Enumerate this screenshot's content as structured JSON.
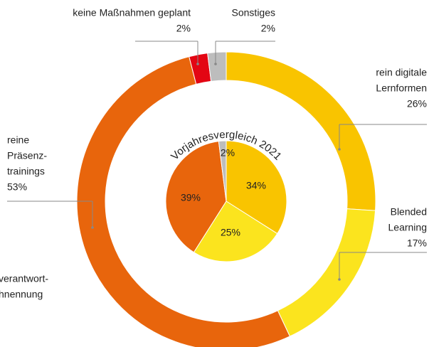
{
  "chart_data": {
    "type": "donut",
    "title": "Vorjahresvergleich 2021",
    "note": [
      "verantwort-",
      "hnennung"
    ],
    "outer": {
      "categories": [
        [
          "rein digitale",
          "Lernformen"
        ],
        [
          "Blended",
          "Learning"
        ],
        [
          "reine",
          "Präsenz-",
          "trainings"
        ],
        [
          "keine Maßnahmen geplant"
        ],
        [
          "Sonstiges"
        ]
      ],
      "values": [
        26,
        17,
        53,
        2,
        2
      ],
      "value_labels": [
        "26%",
        "17%",
        "53%",
        "2%",
        "2%"
      ],
      "colors": [
        "#f9c400",
        "#fbe41e",
        "#e8650c",
        "#e30613",
        "#bdbdbd"
      ]
    },
    "inner": {
      "values": [
        34,
        25,
        39,
        2
      ],
      "value_labels": [
        "34%",
        "25%",
        "39%",
        "2%"
      ],
      "colors": [
        "#f9c400",
        "#fbe41e",
        "#e8650c",
        "#bdbdbd"
      ]
    }
  }
}
